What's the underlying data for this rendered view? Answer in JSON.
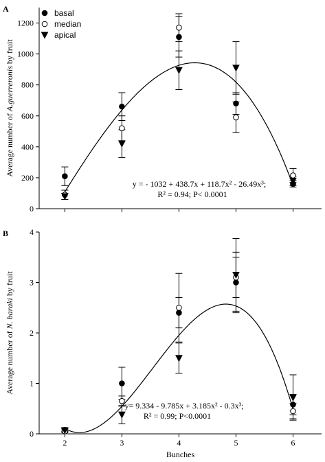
{
  "chart_data": [
    {
      "type": "scatter",
      "panel_label": "A",
      "ylabel": {
        "prefix": "Average number of ",
        "species": "A.guerreronis",
        "suffix": " by fruit"
      },
      "x": [
        2,
        3,
        4,
        5,
        6
      ],
      "series": [
        {
          "name": "basal",
          "marker": "circle",
          "color": "#000000",
          "filled": true,
          "values": [
            210,
            660,
            1110,
            680,
            160
          ],
          "errors": [
            60,
            90,
            130,
            70,
            20
          ]
        },
        {
          "name": "median",
          "marker": "circle",
          "color": "#000000",
          "filled": false,
          "values": [
            90,
            520,
            1170,
            590,
            215
          ],
          "errors": [
            30,
            80,
            90,
            100,
            45
          ]
        },
        {
          "name": "apical",
          "marker": "triangle-down",
          "color": "#000000",
          "filled": true,
          "values": [
            80,
            420,
            895,
            910,
            180
          ],
          "errors": [
            20,
            90,
            125,
            170,
            30
          ]
        }
      ],
      "fit": {
        "coefficients": [
          -1032,
          438.7,
          118.7,
          -26.49
        ],
        "xrange": [
          2,
          6
        ]
      },
      "equation": "y = - 1032 + 438.7x  + 118.7x² - 26.49x³;",
      "stats": "R² = 0.94; P< 0.0001",
      "xlim": [
        1.55,
        6.5
      ],
      "xticks": [
        2,
        3,
        4,
        5,
        6
      ],
      "ylim": [
        0,
        1300
      ],
      "yticks": [
        0,
        200,
        400,
        600,
        800,
        1000,
        1200
      ],
      "legend": "top-left"
    },
    {
      "type": "scatter",
      "panel_label": "B",
      "ylabel": {
        "prefix": "Average number of ",
        "species": "N. baraki",
        "suffix": " by fruit"
      },
      "xlabel": "Bunches",
      "x": [
        2,
        3,
        4,
        5,
        6
      ],
      "series": [
        {
          "marker": "circle",
          "color": "#000000",
          "filled": true,
          "values": [
            0.08,
            1.0,
            2.4,
            3.0,
            0.58
          ],
          "errors": [
            0.03,
            0.32,
            0.3,
            0.6,
            0.2
          ]
        },
        {
          "marker": "circle",
          "color": "#000000",
          "filled": false,
          "values": [
            0.05,
            0.65,
            2.5,
            3.1,
            0.45
          ],
          "errors": [
            0.03,
            0.1,
            0.68,
            0.4,
            0.15
          ]
        },
        {
          "marker": "triangle-down",
          "color": "#000000",
          "filled": true,
          "values": [
            0.07,
            0.38,
            1.5,
            3.15,
            0.72
          ],
          "errors": [
            0.03,
            0.18,
            0.3,
            0.72,
            0.45
          ]
        }
      ],
      "fit": {
        "coefficients": [
          9.334,
          -9.785,
          3.185,
          -0.3
        ],
        "xrange": [
          2,
          6
        ]
      },
      "equation": "y=  9.334 - 9.785x + 3.185x² - 0.3x³;",
      "stats": "R² = 0.99; P<0.0001",
      "xlim": [
        1.55,
        6.5
      ],
      "xticks": [
        2,
        3,
        4,
        5,
        6
      ],
      "ylim": [
        0,
        4
      ],
      "yticks": [
        0,
        1,
        2,
        3,
        4
      ]
    }
  ]
}
